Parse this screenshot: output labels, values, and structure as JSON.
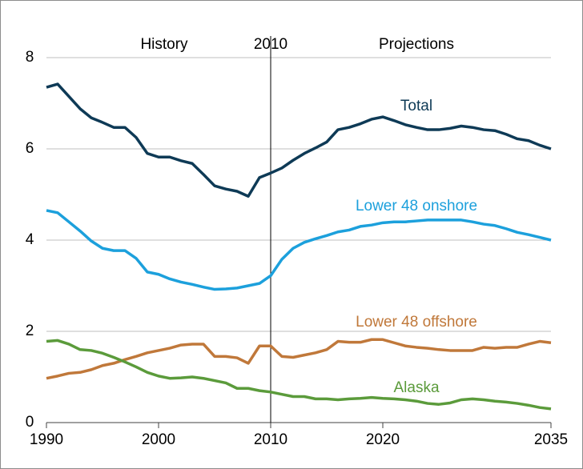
{
  "chart_data": {
    "type": "line",
    "annotations": [
      "History",
      "2010",
      "Projections"
    ],
    "x": [
      1990,
      1991,
      1992,
      1993,
      1994,
      1995,
      1996,
      1997,
      1998,
      1999,
      2000,
      2001,
      2002,
      2003,
      2004,
      2005,
      2006,
      2007,
      2008,
      2009,
      2010,
      2011,
      2012,
      2013,
      2014,
      2015,
      2016,
      2017,
      2018,
      2019,
      2020,
      2021,
      2022,
      2023,
      2024,
      2025,
      2026,
      2027,
      2028,
      2029,
      2030,
      2031,
      2032,
      2033,
      2034,
      2035
    ],
    "series": [
      {
        "name": "Total",
        "color": "#0e3a56",
        "values": [
          7.35,
          7.42,
          7.15,
          6.88,
          6.68,
          6.58,
          6.47,
          6.47,
          6.25,
          5.9,
          5.82,
          5.82,
          5.74,
          5.68,
          5.44,
          5.19,
          5.12,
          5.07,
          4.96,
          5.37,
          5.47,
          5.58,
          5.75,
          5.9,
          6.02,
          6.15,
          6.42,
          6.47,
          6.55,
          6.65,
          6.7,
          6.62,
          6.53,
          6.47,
          6.42,
          6.42,
          6.45,
          6.5,
          6.47,
          6.42,
          6.4,
          6.32,
          6.22,
          6.18,
          6.08,
          6.0
        ]
      },
      {
        "name": "Lower 48 onshore",
        "color": "#1ca0dc",
        "values": [
          4.65,
          4.6,
          4.4,
          4.2,
          3.98,
          3.82,
          3.77,
          3.77,
          3.6,
          3.3,
          3.25,
          3.15,
          3.08,
          3.03,
          2.97,
          2.92,
          2.93,
          2.95,
          3.0,
          3.05,
          3.22,
          3.58,
          3.82,
          3.95,
          4.03,
          4.1,
          4.18,
          4.22,
          4.3,
          4.33,
          4.38,
          4.4,
          4.4,
          4.42,
          4.44,
          4.44,
          4.44,
          4.44,
          4.4,
          4.35,
          4.32,
          4.25,
          4.17,
          4.12,
          4.06,
          4.0
        ]
      },
      {
        "name": "Lower 48 offshore",
        "color": "#c0783a",
        "values": [
          0.97,
          1.02,
          1.08,
          1.1,
          1.16,
          1.25,
          1.3,
          1.38,
          1.45,
          1.53,
          1.58,
          1.63,
          1.7,
          1.72,
          1.72,
          1.45,
          1.45,
          1.42,
          1.3,
          1.68,
          1.68,
          1.45,
          1.43,
          1.48,
          1.53,
          1.6,
          1.78,
          1.76,
          1.76,
          1.82,
          1.82,
          1.75,
          1.68,
          1.65,
          1.63,
          1.6,
          1.58,
          1.58,
          1.58,
          1.65,
          1.63,
          1.65,
          1.65,
          1.72,
          1.78,
          1.75
        ]
      },
      {
        "name": "Alaska",
        "color": "#5b9b3b",
        "values": [
          1.78,
          1.8,
          1.72,
          1.6,
          1.58,
          1.52,
          1.43,
          1.33,
          1.22,
          1.1,
          1.02,
          0.97,
          0.98,
          1.0,
          0.97,
          0.92,
          0.87,
          0.75,
          0.75,
          0.7,
          0.67,
          0.62,
          0.57,
          0.57,
          0.52,
          0.52,
          0.5,
          0.52,
          0.53,
          0.55,
          0.53,
          0.52,
          0.5,
          0.47,
          0.42,
          0.4,
          0.43,
          0.5,
          0.52,
          0.5,
          0.47,
          0.45,
          0.42,
          0.38,
          0.33,
          0.3
        ]
      }
    ],
    "xlim": [
      1990,
      2035
    ],
    "xticks": [
      1990,
      2000,
      2010,
      2020,
      2035
    ],
    "ylim": [
      0,
      8
    ],
    "yticks": [
      0,
      2,
      4,
      6,
      8
    ],
    "grid": true
  }
}
